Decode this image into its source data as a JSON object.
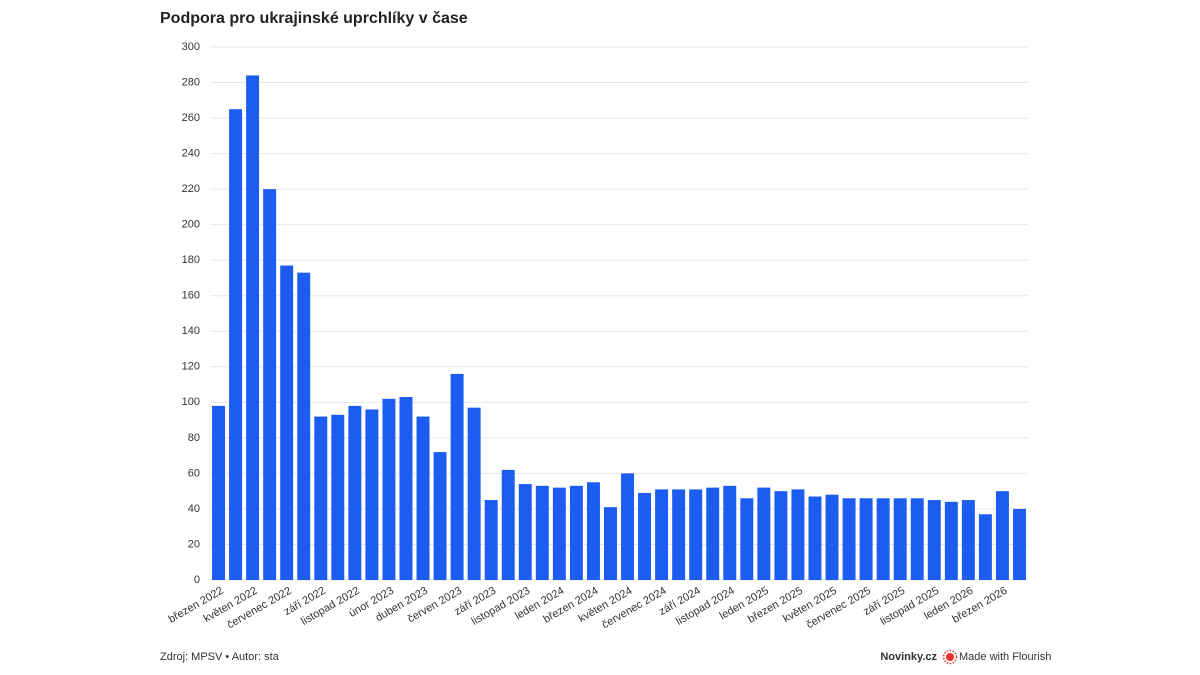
{
  "chart_data": {
    "type": "bar",
    "title": "Podpora pro ukrajinské uprchlíky v čase",
    "categories": [
      "březen 2022",
      null,
      "květen 2022",
      null,
      "červenec 2022",
      null,
      "září 2022",
      null,
      "listopad 2022",
      null,
      "únor 2023",
      null,
      "duben 2023",
      null,
      "červen 2023",
      null,
      "září 2023",
      null,
      "listopad 2023",
      null,
      "leden 2024",
      null,
      "březen 2024",
      null,
      "květen 2024",
      null,
      "červenec 2024",
      null,
      "září 2024",
      null,
      "listopad 2024",
      null,
      "leden 2025",
      null,
      "březen 2025",
      null,
      "květen 2025",
      null,
      "červenec 2025",
      null,
      "září 2025",
      null,
      "listopad 2025",
      null,
      "leden 2026",
      null,
      "březen 2026",
      null
    ],
    "values": [
      98,
      265,
      284,
      220,
      177,
      173,
      92,
      93,
      98,
      96,
      102,
      103,
      92,
      72,
      116,
      97,
      45,
      62,
      54,
      53,
      52,
      53,
      55,
      41,
      60,
      49,
      51,
      51,
      51,
      52,
      53,
      46,
      52,
      50,
      51,
      47,
      48,
      46,
      46,
      46,
      46,
      46,
      45,
      44,
      45,
      37,
      50,
      40
    ],
    "color": "#1d5cf0",
    "ylim": [
      0,
      300
    ],
    "yticks": [
      0,
      20,
      40,
      60,
      80,
      100,
      120,
      140,
      160,
      180,
      200,
      220,
      240,
      260,
      280,
      300
    ],
    "grid": true
  },
  "footer": {
    "source": "Zdroj: MPSV • Autor: sta",
    "publisher": "Novinky.cz",
    "credit": "Made with Flourish"
  }
}
